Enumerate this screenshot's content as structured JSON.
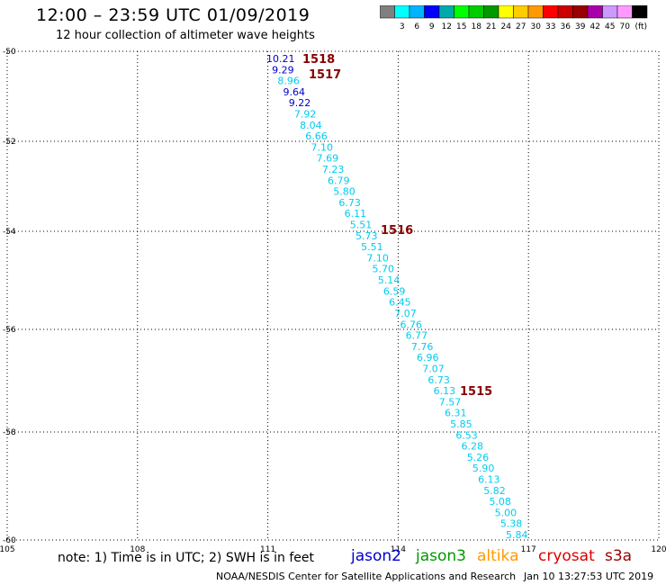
{
  "title": "12:00 – 23:59 UTC 01/09/2019",
  "subtitle": "12 hour collection of altimeter wave heights",
  "colorbar": {
    "colors": [
      "#808080",
      "#00ffff",
      "#00b4ff",
      "#0000ff",
      "#00aaaa",
      "#00ff00",
      "#00cc00",
      "#009900",
      "#ffff00",
      "#ffcc00",
      "#ff9900",
      "#ff0000",
      "#cc0000",
      "#990000",
      "#aa00aa",
      "#cc99ff",
      "#ff99ff",
      "#000000"
    ],
    "labels": [
      "3",
      "6",
      "9",
      "12",
      "15",
      "18",
      "21",
      "24",
      "27",
      "30",
      "33",
      "36",
      "39",
      "42",
      "45",
      "70"
    ],
    "unit": "(ft)"
  },
  "map": {
    "lon_ticks": [
      "105",
      "108",
      "111",
      "114",
      "117",
      "120"
    ],
    "lat_ticks": [
      "-50",
      "-52",
      "-54",
      "-56",
      "-58",
      "-60"
    ],
    "lon_range": [
      105,
      120
    ],
    "lat_range": [
      -50,
      -60
    ],
    "grid": "dotted"
  },
  "passes": [
    {
      "id": "1518"
    },
    {
      "id": "1517"
    },
    {
      "id": "1516"
    },
    {
      "id": "1515"
    }
  ],
  "observations": [
    {
      "v": "10.21",
      "sat": "jason2"
    },
    {
      "v": "9.29",
      "sat": "jason2"
    },
    {
      "v": "8.96",
      "sat": "s3a"
    },
    {
      "v": "9.64",
      "sat": "jason2"
    },
    {
      "v": "9.22",
      "sat": "jason2"
    },
    {
      "v": "7.92",
      "sat": "s3a"
    },
    {
      "v": "8.04",
      "sat": "s3a"
    },
    {
      "v": "6.66",
      "sat": "s3a"
    },
    {
      "v": "7.10",
      "sat": "s3a"
    },
    {
      "v": "7.69",
      "sat": "s3a"
    },
    {
      "v": "7.23",
      "sat": "s3a"
    },
    {
      "v": "6.79",
      "sat": "s3a"
    },
    {
      "v": "5.80",
      "sat": "s3a"
    },
    {
      "v": "6.73",
      "sat": "s3a"
    },
    {
      "v": "6.11",
      "sat": "s3a"
    },
    {
      "v": "5.51",
      "sat": "s3a"
    },
    {
      "v": "5.73",
      "sat": "s3a"
    },
    {
      "v": "5.51",
      "sat": "s3a"
    },
    {
      "v": "7.10",
      "sat": "s3a"
    },
    {
      "v": "5.70",
      "sat": "s3a"
    },
    {
      "v": "5.14",
      "sat": "s3a"
    },
    {
      "v": "6.59",
      "sat": "s3a"
    },
    {
      "v": "6.45",
      "sat": "s3a"
    },
    {
      "v": "7.07",
      "sat": "s3a"
    },
    {
      "v": "6.76",
      "sat": "s3a"
    },
    {
      "v": "6.77",
      "sat": "s3a"
    },
    {
      "v": "7.76",
      "sat": "s3a"
    },
    {
      "v": "6.96",
      "sat": "s3a"
    },
    {
      "v": "7.07",
      "sat": "s3a"
    },
    {
      "v": "6.73",
      "sat": "s3a"
    },
    {
      "v": "6.13",
      "sat": "s3a"
    },
    {
      "v": "7.57",
      "sat": "s3a"
    },
    {
      "v": "6.31",
      "sat": "s3a"
    },
    {
      "v": "5.85",
      "sat": "s3a"
    },
    {
      "v": "6.53",
      "sat": "s3a"
    },
    {
      "v": "6.28",
      "sat": "s3a"
    },
    {
      "v": "5.26",
      "sat": "s3a"
    },
    {
      "v": "5.90",
      "sat": "s3a"
    },
    {
      "v": "6.13",
      "sat": "s3a"
    },
    {
      "v": "5.82",
      "sat": "s3a"
    },
    {
      "v": "5.08",
      "sat": "s3a"
    },
    {
      "v": "5.00",
      "sat": "s3a"
    },
    {
      "v": "5.38",
      "sat": "s3a"
    },
    {
      "v": "5.84",
      "sat": "s3a"
    }
  ],
  "note": "note: 1) Time is in UTC; 2) SWH is in feet",
  "satellites": [
    {
      "name": "jason2",
      "color": "#0000cc"
    },
    {
      "name": "jason3",
      "color": "#009900"
    },
    {
      "name": "altika",
      "color": "#ff9900"
    },
    {
      "name": "cryosat",
      "color": "#dd0000"
    },
    {
      "name": "s3a",
      "color": "#990000"
    }
  ],
  "value_colors": {
    "jason2": "#0000cc",
    "s3a": "#00ccee"
  },
  "pass_color": "#880000",
  "footer": {
    "credit": "NOAA/NESDIS Center for Satellite Applications and Research",
    "timestamp": "Jan 10 13:27:53 UTC 2019"
  }
}
